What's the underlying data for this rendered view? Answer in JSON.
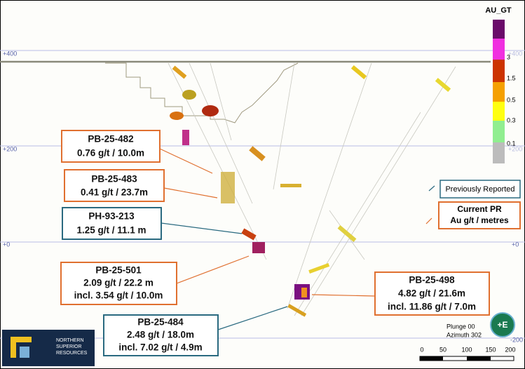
{
  "elevation_labels": [
    "+400",
    "+200",
    "+0",
    "-200"
  ],
  "legend": {
    "title": "AU_GT",
    "labels": [
      "3",
      "1.5",
      "0.5",
      "0.3",
      "0.1"
    ]
  },
  "callouts": [
    {
      "hole": "PB-25-482",
      "lines": [
        "0.76 g/t / 10.0m"
      ]
    },
    {
      "hole": "PB-25-483",
      "lines": [
        "0.41 g/t / 23.7m"
      ]
    },
    {
      "hole": "PH-93-213",
      "lines": [
        "1.25 g/t / 11.1 m"
      ]
    },
    {
      "hole": "PB-25-501",
      "lines": [
        "2.09 g/t / 22.2 m",
        "incl. 3.54 g/t / 10.0m"
      ]
    },
    {
      "hole": "PB-25-498",
      "lines": [
        "4.82 g/t / 21.6m",
        "incl. 11.86 g/t / 7.0m"
      ]
    },
    {
      "hole": "PB-25-484",
      "lines": [
        "2.48 g/t / 18.0m",
        "incl. 7.02 g/t / 4.9m"
      ]
    }
  ],
  "key": {
    "previous": "Previously Reported",
    "current": [
      "Current PR",
      "Au g/t / metres"
    ]
  },
  "orientation": {
    "plunge": "Plunge 00",
    "azimuth": "Azimuth 302"
  },
  "scale": [
    "0",
    "50",
    "100",
    "150",
    "200"
  ],
  "logo": [
    "NORTHERN",
    "SUPERIOR",
    "RESOURCES"
  ]
}
